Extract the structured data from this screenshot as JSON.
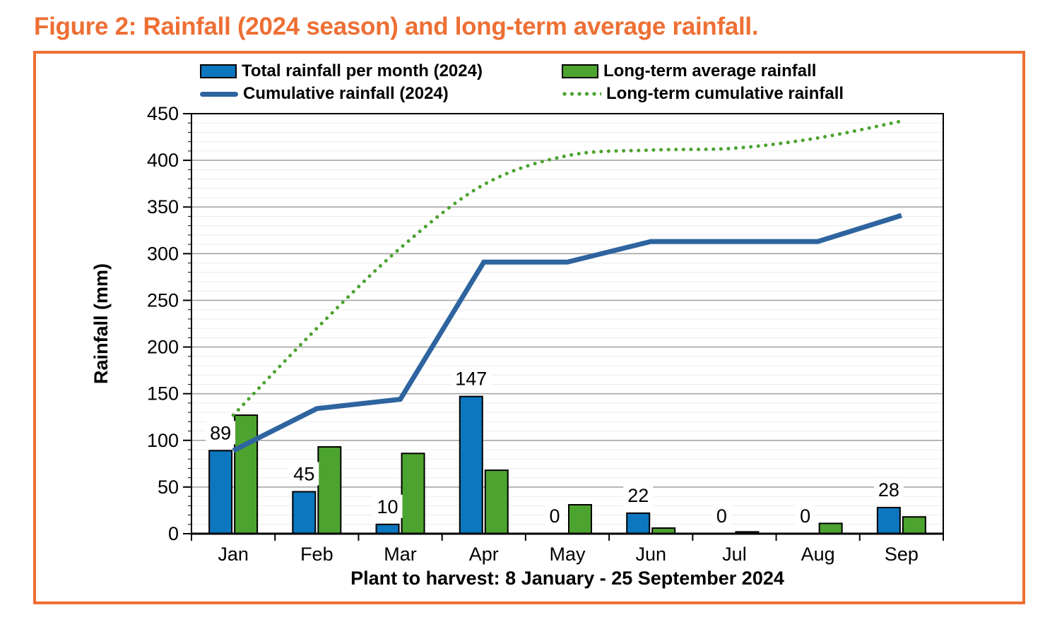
{
  "title": "Figure 2: Rainfall (2024 season) and long-term average rainfall.",
  "colors": {
    "title_orange": "#EE6F34",
    "frame_border_orange": "#EE7031",
    "bar_blue": "#0C76BE",
    "bar_green": "#4DA32F",
    "line_blue": "#2E649F",
    "dotted_green": "#4CA331",
    "major_gridline": "#A6A6A6",
    "minor_gridline": "#ECECEC",
    "axis_black": "#000000",
    "label_bg": "#FFFFFF"
  },
  "chart_data": {
    "type": "combo-bar-line",
    "categories": [
      "Jan",
      "Feb",
      "Mar",
      "Apr",
      "May",
      "Jun",
      "Jul",
      "Aug",
      "Sep"
    ],
    "series": [
      {
        "name": "Total rainfall per month (2024)",
        "type": "bar",
        "color": "#0C76BE",
        "values": [
          89,
          45,
          10,
          147,
          0,
          22,
          0,
          0,
          28
        ],
        "data_labels": true
      },
      {
        "name": "Long-term average rainfall",
        "type": "bar",
        "color": "#4DA32F",
        "values": [
          127,
          93,
          86,
          68,
          31,
          6,
          2,
          11,
          18
        ],
        "data_labels": false
      },
      {
        "name": "Cumulative rainfall (2024)",
        "type": "line",
        "style": "solid",
        "color": "#2E649F",
        "values": [
          89,
          134,
          144,
          291,
          291,
          313,
          313,
          313,
          341
        ]
      },
      {
        "name": "Long-term cumulative rainfall",
        "type": "line",
        "style": "dotted",
        "color": "#4CA331",
        "values": [
          127,
          220,
          306,
          374,
          405,
          411,
          413,
          424,
          442
        ]
      }
    ],
    "ylabel": "Rainfall (mm)",
    "xlabel": "Plant to harvest: 8 January - 25 September 2024",
    "ylim": [
      0,
      450
    ],
    "yticks": [
      0,
      50,
      100,
      150,
      200,
      250,
      300,
      350,
      400,
      450
    ],
    "major_tick_step": 50,
    "minor_gridline_step": 10,
    "grid": true,
    "legend_position": "top"
  }
}
